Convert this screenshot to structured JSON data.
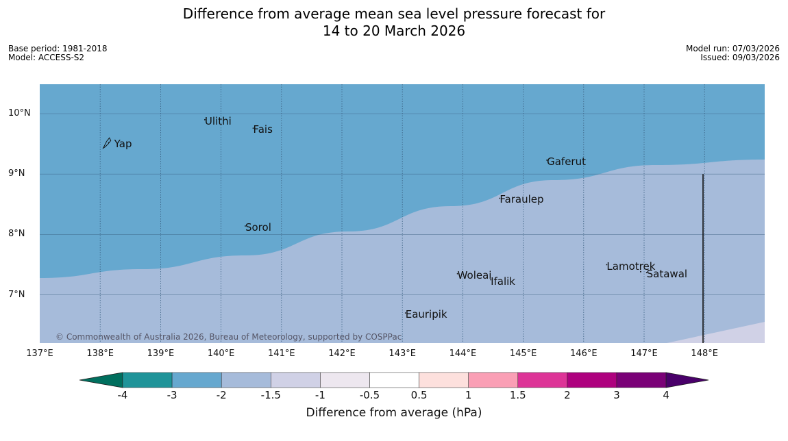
{
  "title_line1": "Difference from average mean sea level pressure forecast for",
  "title_line2": "14 to 20 March 2026",
  "meta_left": {
    "base_period": "Base period: 1981-2018",
    "model": "Model: ACCESS-S2"
  },
  "meta_right": {
    "model_run": "Model run: 07/03/2026",
    "issued": "Issued: 09/03/2026"
  },
  "map": {
    "lon_range": [
      137,
      149
    ],
    "lat_range": [
      6.2,
      10.5
    ],
    "lat_ticks": [
      "10°N",
      "9°N",
      "8°N",
      "7°N"
    ],
    "lon_ticks": [
      "137°E",
      "138°E",
      "139°E",
      "140°E",
      "141°E",
      "142°E",
      "143°E",
      "144°E",
      "145°E",
      "146°E",
      "147°E",
      "148°E"
    ],
    "places": [
      {
        "name": "Yap",
        "lon": 138.13,
        "lat": 9.52
      },
      {
        "name": "Ulithi",
        "lon": 139.72,
        "lat": 9.9
      },
      {
        "name": "Fais",
        "lon": 140.52,
        "lat": 9.76
      },
      {
        "name": "Gaferut",
        "lon": 145.38,
        "lat": 9.23
      },
      {
        "name": "Faraulep",
        "lon": 144.6,
        "lat": 8.6
      },
      {
        "name": "Sorol",
        "lon": 140.39,
        "lat": 8.14
      },
      {
        "name": "Woleai",
        "lon": 143.9,
        "lat": 7.35
      },
      {
        "name": "Ifalik",
        "lon": 144.45,
        "lat": 7.25
      },
      {
        "name": "Lamotrek",
        "lon": 146.37,
        "lat": 7.5
      },
      {
        "name": "Satawal",
        "lon": 147.03,
        "lat": 7.37
      },
      {
        "name": "Eauripik",
        "lon": 143.04,
        "lat": 6.7
      }
    ],
    "copyright": "© Commonwealth of Australia 2026, Bureau of Meteorology, supported by COSPPac",
    "colors": {
      "band_neg3": "#66a8cf",
      "band_neg2": "#a6bbda",
      "band_neg15": "#d0d1e6",
      "grid": "#3a5f80"
    }
  },
  "colorbar": {
    "title": "Difference from average (hPa)",
    "labels": [
      "-4",
      "-3",
      "-2",
      "-1.5",
      "-1",
      "-0.5",
      "0.5",
      "1",
      "1.5",
      "2",
      "3",
      "4"
    ],
    "colors": {
      "below": "#006f5e",
      "segments": [
        "#1f9499",
        "#66a8cf",
        "#a6bbda",
        "#d0d1e6",
        "#ede7ef",
        "#ffffff",
        "#fde0dd",
        "#fa9fb5",
        "#dd3497",
        "#ae017e",
        "#7a0177"
      ],
      "above": "#49006a"
    }
  }
}
